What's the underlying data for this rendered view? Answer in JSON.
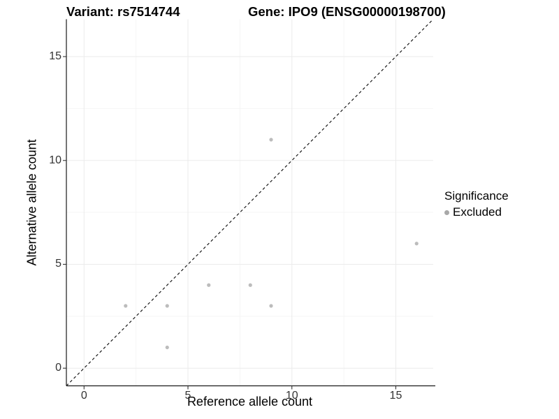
{
  "title": {
    "variant": "Variant: rs7514744",
    "gene": "Gene: IPO9 (ENSG00000198700)"
  },
  "legend": {
    "title": "Significance",
    "entries": [
      {
        "label": "Excluded",
        "color": "#a8a8a8"
      }
    ]
  },
  "colors": {
    "background": "#ffffff",
    "point": "#bcbcbc",
    "legend_dot": "#a8a8a8",
    "grid_major": "#ebebeb",
    "grid_minor": "#f5f5f5",
    "axis_line": "#1a1a1a",
    "identity_line": "#1a1a1a",
    "tick_text": "#333333"
  },
  "chart_data": {
    "type": "scatter",
    "title": "Variant: rs7514744    Gene: IPO9 (ENSG00000198700)",
    "xlabel": "Reference allele count",
    "ylabel": "Alternative allele count",
    "xlim": [
      -0.85,
      16.8
    ],
    "ylim": [
      -0.85,
      16.8
    ],
    "x_ticks": [
      0,
      5,
      10,
      15
    ],
    "y_ticks": [
      0,
      5,
      10,
      15
    ],
    "x_minor_ticks": [
      2.5,
      7.5,
      12.5
    ],
    "y_minor_ticks": [
      2.5,
      7.5,
      12.5
    ],
    "grid": true,
    "legend_position": "right",
    "series": [
      {
        "name": "Excluded",
        "color": "#bcbcbc",
        "points": [
          [
            2,
            3
          ],
          [
            4,
            1
          ],
          [
            4,
            3
          ],
          [
            6,
            4
          ],
          [
            8,
            4
          ],
          [
            9,
            3
          ],
          [
            9,
            11
          ],
          [
            16,
            6
          ]
        ]
      }
    ],
    "reference_line": {
      "type": "identity",
      "slope": 1,
      "intercept": 0,
      "style": "dashed",
      "color": "#1a1a1a"
    }
  }
}
